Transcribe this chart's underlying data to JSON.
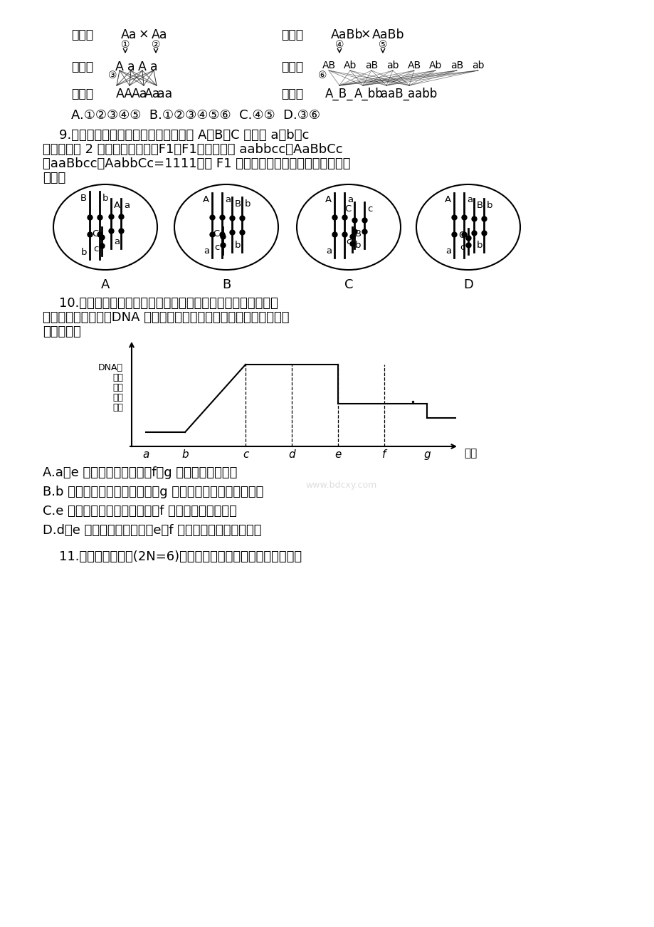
{
  "bg_color": "#ffffff",
  "text_color": "#000000",
  "q9_line1": "9.某动物细胞中位于常染色体上的基因 A、B、C 分别对 a、b、c",
  "q9_line2": "为显性。用 2 个纯合个体杂交得F1，F1测交结果为 aabbcc：AaBbCc",
  "q9_line3": "：aaBbcc：AabbCc=1111。则 F1 的体细胞中三对基因在染色体上的",
  "q9_line4": "位置是",
  "q10_line1": "10.下图表示发生在某动物精巢内形成精子的过程中，每个细胞",
  "q10_line2": "中（不考虑细胞质）DNA 分子数量变化。在下列各项中对本图解释完",
  "q10_line3": "全正确的是",
  "q10_options": [
    "A.a～e 表示初级精母细胞，f～g 表示次级精母细胞",
    "B.b 点表示初级精母细胞形成，g 点表示减数第二次分裂结束",
    "C.e 点表示次级精母细胞形成，f 点表示减数分裂结束",
    "D.d～e 过程同染色体分离，e～f 过程非同染色体自由组合"
  ],
  "q11_text": "11.图示为某生物体(2N=6)的细胞分裂。下列相关分析正确的是",
  "親代_left": "亲代：",
  "配子_left": "配子：",
  "子代_left": "子代：",
  "親代_right": "亲代：",
  "配子_right": "配子：",
  "子代_right": "子代：",
  "answer_line": "A.①②③④⑤  B.①②③④⑤⑥  C.④⑤  D.③⑥",
  "dna_ylabel_lines": [
    "DNA每",
    "分个",
    "子细",
    "数胞",
    "量中"
  ],
  "time_label": "时间"
}
